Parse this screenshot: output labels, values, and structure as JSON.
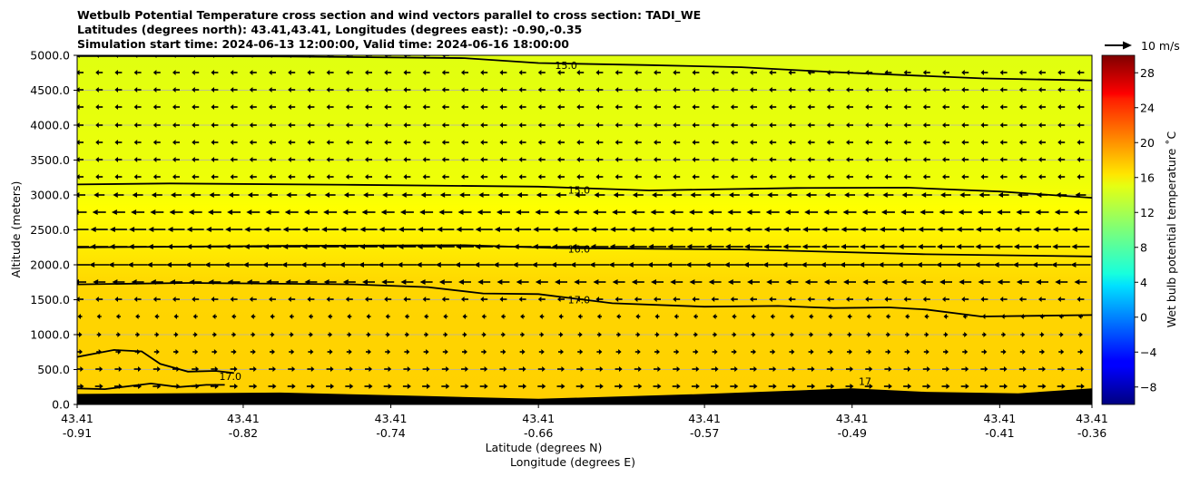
{
  "chart_data": {
    "type": "contour_cross_section",
    "title_lines": [
      "Wetbulb Potential Temperature cross section and wind vectors parallel to cross section: TADI_WE",
      "Latitudes (degrees north): 43.41,43.41, Longitudes (degrees east): -0.90,-0.35",
      "Simulation start time: 2024-06-13 12:00:00, Valid time: 2024-06-16 18:00:00"
    ],
    "ylabel": "Altitude (meters)",
    "xlabel_lines": [
      "Latitude (degrees N)",
      "Longitude (degrees E)"
    ],
    "ylim": [
      0,
      5000
    ],
    "y_ticks": [
      "0.0",
      "500.0",
      "1000.0",
      "1500.0",
      "2000.0",
      "2500.0",
      "3000.0",
      "3500.0",
      "4000.0",
      "4500.0",
      "5000.0"
    ],
    "x_tick_labels": [
      {
        "lat": "43.41",
        "lon": "-0.91"
      },
      {
        "lat": "43.41",
        "lon": "-0.82"
      },
      {
        "lat": "43.41",
        "lon": "-0.74"
      },
      {
        "lat": "43.41",
        "lon": "-0.66"
      },
      {
        "lat": "43.41",
        "lon": "-0.57"
      },
      {
        "lat": "43.41",
        "lon": "-0.49"
      },
      {
        "lat": "43.41",
        "lon": "-0.41"
      },
      {
        "lat": "43.41",
        "lon": "-0.36"
      }
    ],
    "lon_range": [
      -0.91,
      -0.36
    ],
    "grid": "horizontal",
    "colorbar": {
      "label": "Wet bulb potential temperature ˚C",
      "range": [
        -10,
        30
      ],
      "ticks": [
        "−8",
        "−4",
        "0",
        "4",
        "8",
        "12",
        "16",
        "20",
        "24",
        "28"
      ],
      "colormap": "jet"
    },
    "quiver_key": "10 m/s",
    "contours": [
      {
        "level": "15.0",
        "points": [
          [
            -0.91,
            4990
          ],
          [
            -0.8,
            4985
          ],
          [
            -0.7,
            4960
          ],
          [
            -0.66,
            4890
          ],
          [
            -0.6,
            4860
          ],
          [
            -0.55,
            4830
          ],
          [
            -0.5,
            4760
          ],
          [
            -0.42,
            4670
          ],
          [
            -0.36,
            4640
          ]
        ]
      },
      {
        "level": "15.0",
        "points": [
          [
            -0.91,
            3150
          ],
          [
            -0.86,
            3165
          ],
          [
            -0.76,
            3145
          ],
          [
            -0.66,
            3120
          ],
          [
            -0.6,
            3065
          ],
          [
            -0.52,
            3100
          ],
          [
            -0.46,
            3105
          ],
          [
            -0.41,
            3050
          ],
          [
            -0.36,
            2960
          ]
        ]
      },
      {
        "level": "16.0",
        "points": [
          [
            -0.91,
            2250
          ],
          [
            -0.8,
            2270
          ],
          [
            -0.7,
            2280
          ],
          [
            -0.65,
            2240
          ],
          [
            -0.55,
            2220
          ],
          [
            -0.45,
            2150
          ],
          [
            -0.36,
            2120
          ]
        ]
      },
      {
        "level": "17.0",
        "points": [
          [
            -0.91,
            1720
          ],
          [
            -0.85,
            1740
          ],
          [
            -0.76,
            1720
          ],
          [
            -0.72,
            1680
          ],
          [
            -0.69,
            1590
          ],
          [
            -0.66,
            1580
          ],
          [
            -0.62,
            1450
          ],
          [
            -0.57,
            1400
          ],
          [
            -0.53,
            1410
          ],
          [
            -0.5,
            1380
          ],
          [
            -0.47,
            1390
          ],
          [
            -0.45,
            1360
          ],
          [
            -0.42,
            1260
          ],
          [
            -0.36,
            1280
          ]
        ]
      },
      {
        "level": "17.0",
        "points": [
          [
            -0.91,
            680
          ],
          [
            -0.89,
            780
          ],
          [
            -0.875,
            760
          ],
          [
            -0.865,
            580
          ],
          [
            -0.85,
            470
          ],
          [
            -0.835,
            480
          ],
          [
            -0.825,
            450
          ]
        ]
      },
      {
        "level": "",
        "points": [
          [
            -0.91,
            230
          ],
          [
            -0.895,
            220
          ],
          [
            -0.87,
            300
          ],
          [
            -0.855,
            250
          ],
          [
            -0.84,
            280
          ],
          [
            -0.83,
            280
          ]
        ]
      }
    ],
    "contour_labels": [
      {
        "text": "15.0",
        "lon": -0.645,
        "alt": 4860
      },
      {
        "text": "15.0",
        "lon": -0.638,
        "alt": 3070
      },
      {
        "text": "16.0",
        "lon": -0.638,
        "alt": 2230
      },
      {
        "text": "17.0",
        "lon": -0.638,
        "alt": 1500
      },
      {
        "text": "17.0",
        "lon": -0.827,
        "alt": 400
      },
      {
        "text": "17",
        "lon": -0.483,
        "alt": 330
      }
    ],
    "terrain": [
      [
        -0.91,
        150
      ],
      [
        -0.8,
        170
      ],
      [
        -0.72,
        120
      ],
      [
        -0.66,
        80
      ],
      [
        -0.57,
        150
      ],
      [
        -0.49,
        230
      ],
      [
        -0.45,
        180
      ],
      [
        -0.4,
        160
      ],
      [
        -0.36,
        230
      ]
    ]
  }
}
